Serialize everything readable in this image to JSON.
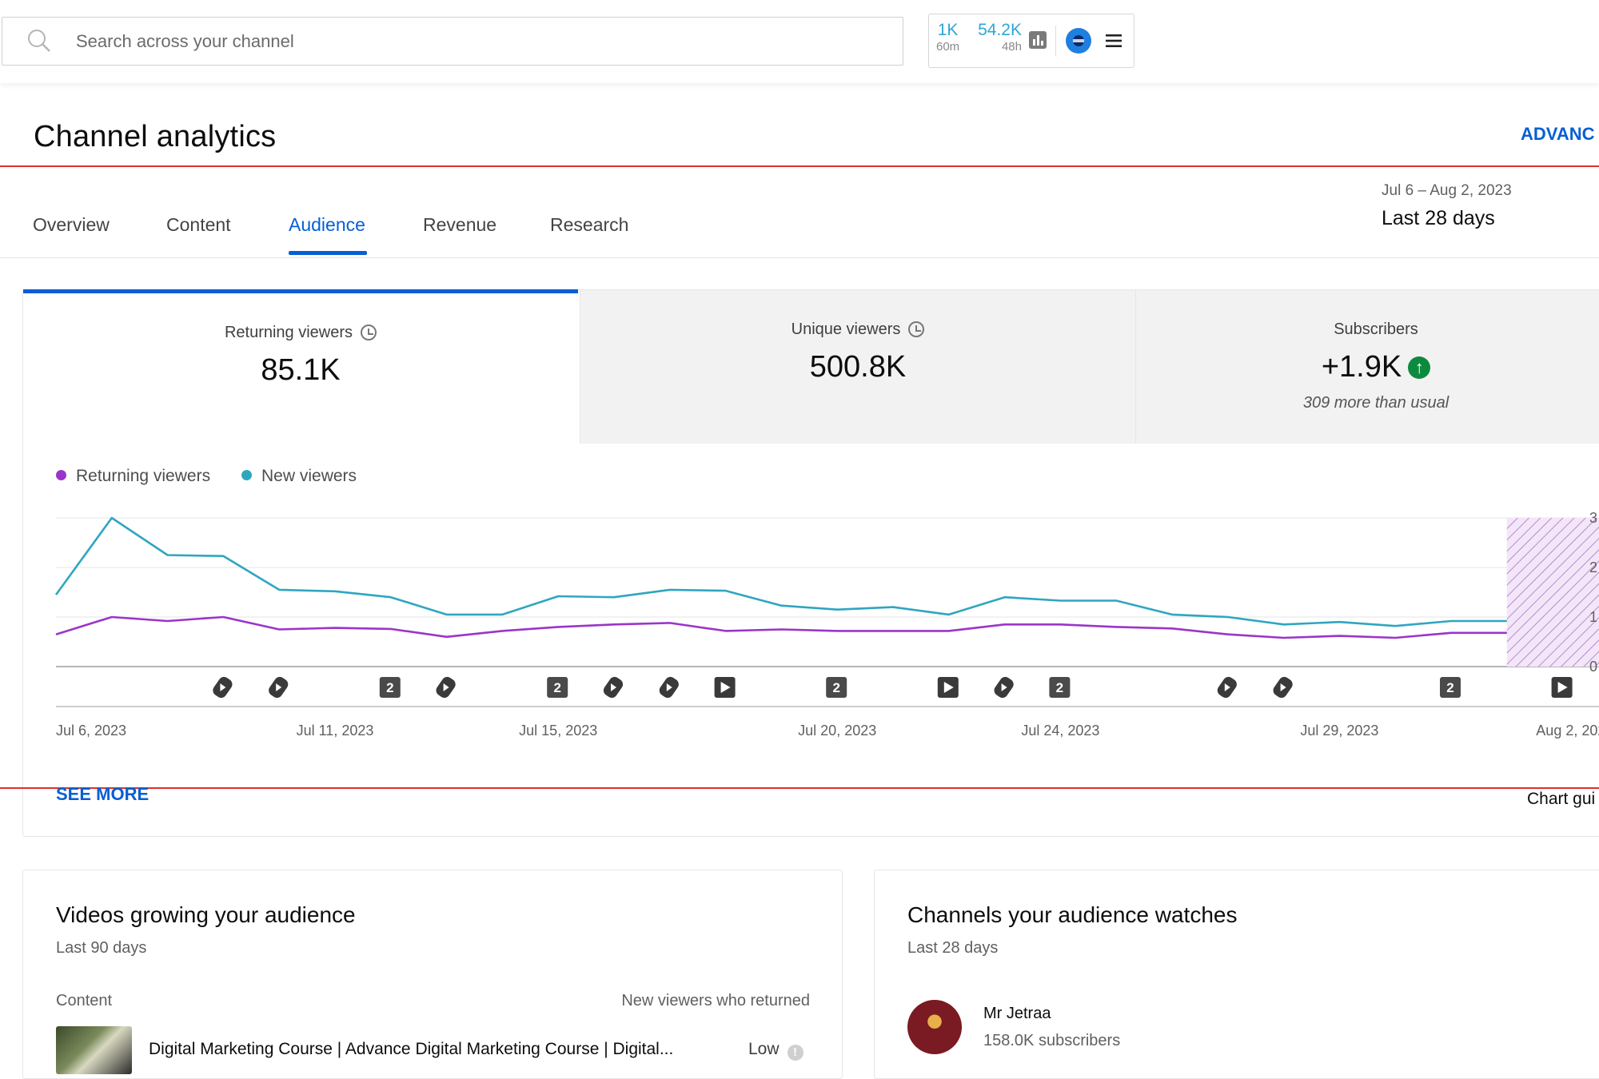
{
  "topbar": {
    "search_placeholder": "Search across your channel",
    "realtime": [
      {
        "value": "1K",
        "window": "60m"
      },
      {
        "value": "54.2K",
        "window": "48h"
      }
    ]
  },
  "header": {
    "title": "Channel analytics",
    "advanced_label": "ADVANC"
  },
  "tabs": [
    {
      "label": "Overview",
      "active": false
    },
    {
      "label": "Content",
      "active": false
    },
    {
      "label": "Audience",
      "active": true
    },
    {
      "label": "Revenue",
      "active": false
    },
    {
      "label": "Research",
      "active": false
    }
  ],
  "date_picker": {
    "range": "Jul 6 – Aug 2, 2023",
    "label": "Last 28 days"
  },
  "metrics": [
    {
      "label": "Returning viewers",
      "value": "85.1K",
      "note": ""
    },
    {
      "label": "Unique viewers",
      "value": "500.8K",
      "note": ""
    },
    {
      "label": "Subscribers",
      "value": "+1.9K",
      "note": "309 more than usual"
    }
  ],
  "legend": [
    {
      "label": "Returning viewers",
      "color": "#9b35c9"
    },
    {
      "label": "New viewers",
      "color": "#2fa6c0"
    }
  ],
  "chart_data": {
    "type": "line",
    "x": [
      "Jul 6",
      "Jul 7",
      "Jul 8",
      "Jul 9",
      "Jul 10",
      "Jul 11",
      "Jul 12",
      "Jul 13",
      "Jul 14",
      "Jul 15",
      "Jul 16",
      "Jul 17",
      "Jul 18",
      "Jul 19",
      "Jul 20",
      "Jul 21",
      "Jul 22",
      "Jul 23",
      "Jul 24",
      "Jul 25",
      "Jul 26",
      "Jul 27",
      "Jul 28",
      "Jul 29",
      "Jul 30",
      "Jul 31",
      "Aug 1"
    ],
    "x_tick_labels": [
      "Jul 6, 2023",
      "Jul 11, 2023",
      "Jul 15, 2023",
      "Jul 20, 2023",
      "Jul 24, 2023",
      "Jul 29, 2023",
      "Aug 2, 2023"
    ],
    "y_tick_labels": [
      "3",
      "2",
      "1",
      "0"
    ],
    "ylim": [
      0,
      3
    ],
    "series": [
      {
        "name": "New viewers",
        "color": "#2fa6c0",
        "values": [
          1.45,
          3.0,
          2.25,
          2.23,
          1.55,
          1.52,
          1.4,
          1.05,
          1.05,
          1.42,
          1.4,
          1.55,
          1.53,
          1.23,
          1.15,
          1.2,
          1.05,
          1.4,
          1.33,
          1.33,
          1.05,
          1.0,
          0.85,
          0.9,
          0.82,
          0.92,
          0.92
        ]
      },
      {
        "name": "Returning viewers",
        "color": "#9b35c9",
        "values": [
          0.65,
          1.0,
          0.92,
          1.0,
          0.75,
          0.78,
          0.76,
          0.6,
          0.72,
          0.8,
          0.85,
          0.88,
          0.72,
          0.75,
          0.72,
          0.72,
          0.72,
          0.85,
          0.85,
          0.8,
          0.77,
          0.65,
          0.58,
          0.62,
          0.58,
          0.68,
          0.68
        ]
      }
    ],
    "incomplete_region": {
      "from": "Aug 1",
      "to": "Aug 2"
    },
    "markers": [
      {
        "index": 3,
        "kind": "short"
      },
      {
        "index": 4,
        "kind": "short"
      },
      {
        "index": 6,
        "kind": "count",
        "label": "2"
      },
      {
        "index": 7,
        "kind": "short"
      },
      {
        "index": 9,
        "kind": "count",
        "label": "2"
      },
      {
        "index": 10,
        "kind": "short"
      },
      {
        "index": 11,
        "kind": "short"
      },
      {
        "index": 12,
        "kind": "video"
      },
      {
        "index": 14,
        "kind": "count",
        "label": "2"
      },
      {
        "index": 16,
        "kind": "video"
      },
      {
        "index": 17,
        "kind": "short"
      },
      {
        "index": 18,
        "kind": "count",
        "label": "2"
      },
      {
        "index": 21,
        "kind": "short"
      },
      {
        "index": 22,
        "kind": "short"
      },
      {
        "index": 25,
        "kind": "count",
        "label": "2"
      },
      {
        "index": 27,
        "kind": "video"
      }
    ]
  },
  "footer": {
    "see_more": "SEE MORE",
    "chart_guide": "Chart gui"
  },
  "videos_card": {
    "title": "Videos growing your audience",
    "subtitle": "Last 90 days",
    "col_content": "Content",
    "col_metric": "New viewers who returned",
    "rows": [
      {
        "title": "Digital Marketing Course | Advance Digital Marketing Course | Digital...",
        "level": "Low"
      }
    ]
  },
  "channels_card": {
    "title": "Channels your audience watches",
    "subtitle": "Last 28 days",
    "channels": [
      {
        "name": "Mr Jetraa",
        "subscribers": "158.0K subscribers"
      }
    ]
  }
}
